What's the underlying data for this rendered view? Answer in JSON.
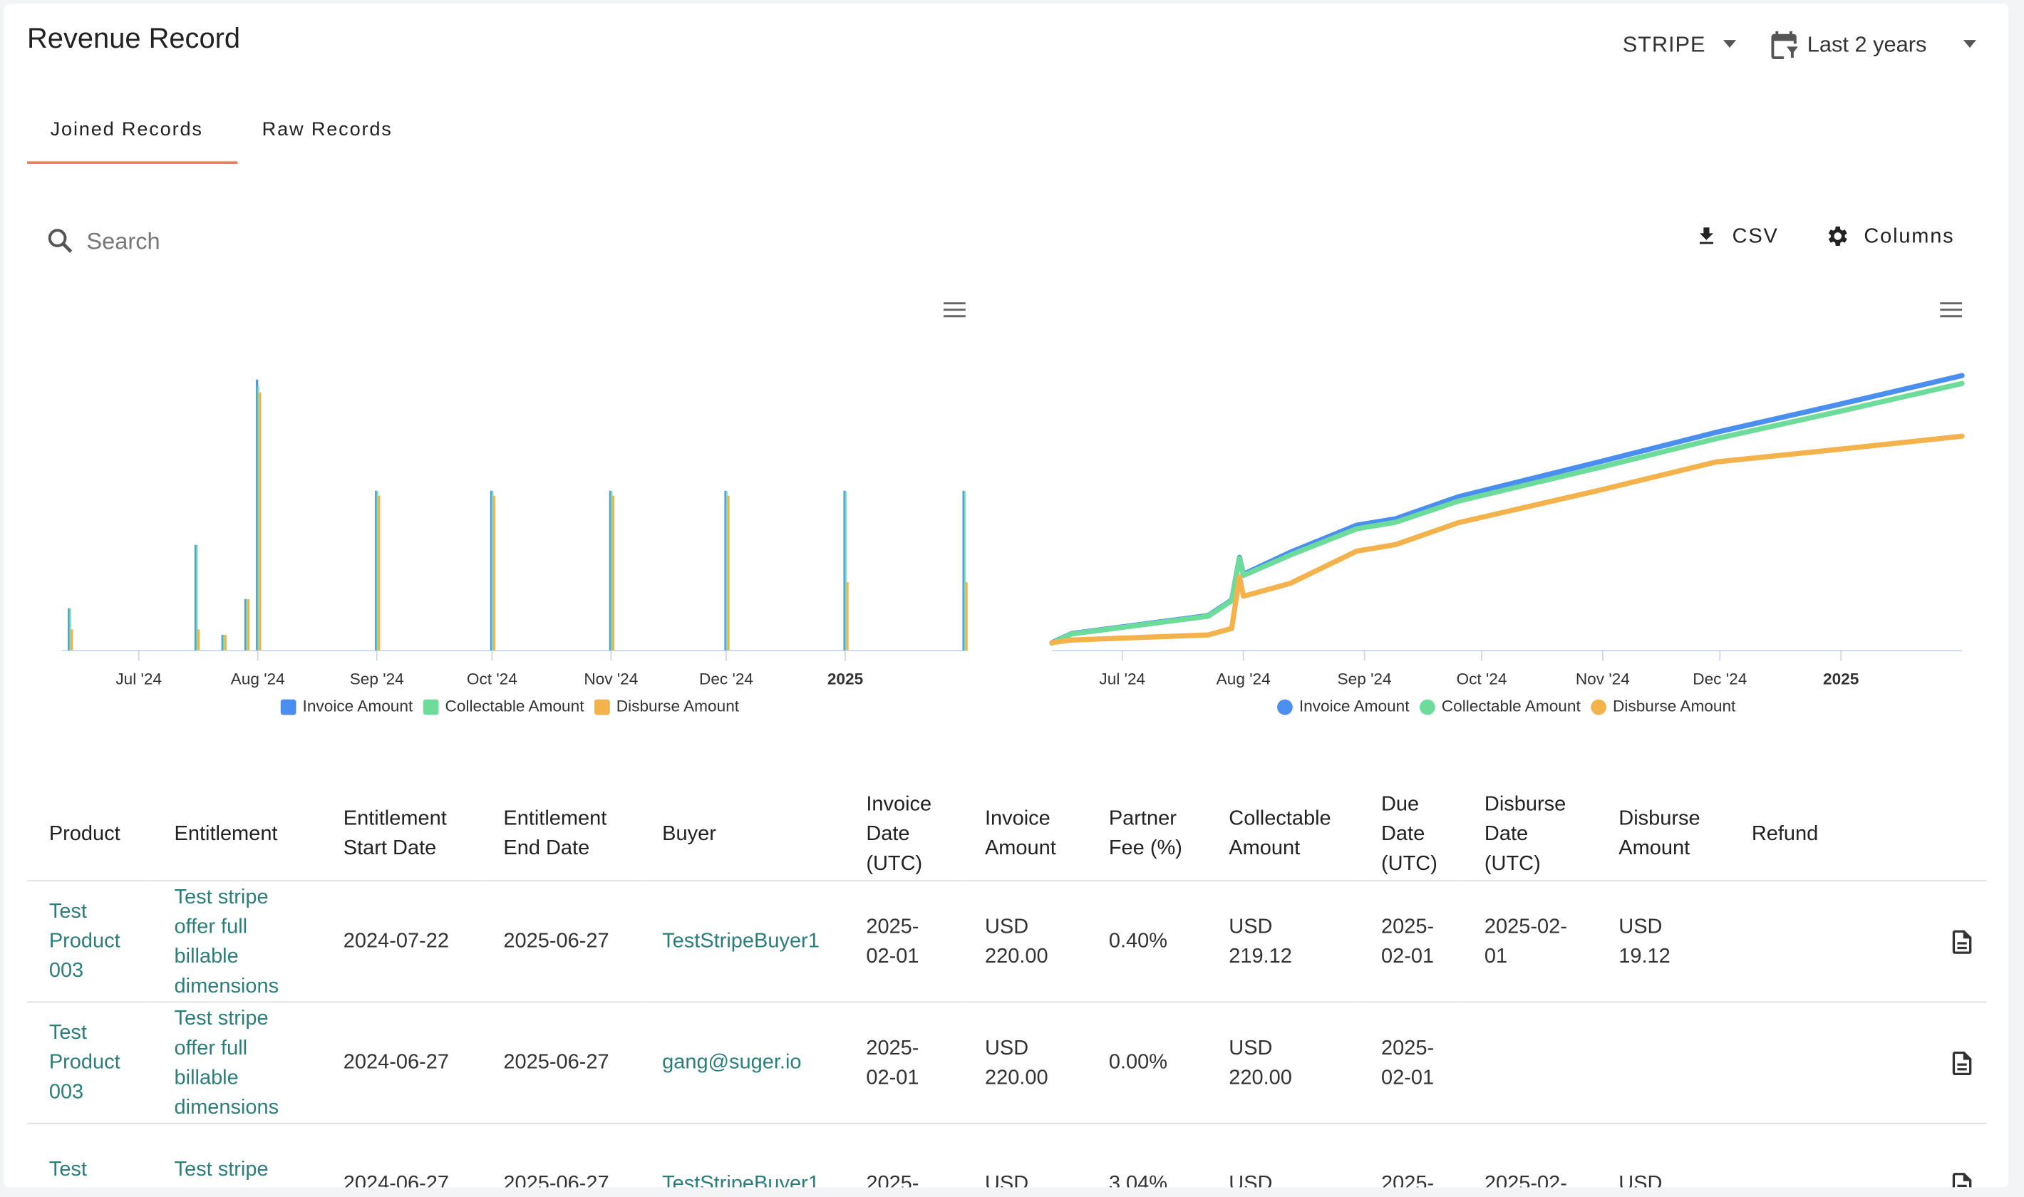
{
  "header": {
    "title": "Revenue Record",
    "source": "STRIPE",
    "date_range": "Last 2 years"
  },
  "tabs": [
    "Joined Records",
    "Raw Records"
  ],
  "toolbar": {
    "search_placeholder": "Search",
    "csv": "CSV",
    "columns": "Columns"
  },
  "chart_data": [
    {
      "type": "bar",
      "x": [
        "2024-06-13",
        "2024-07-16",
        "2024-07-23",
        "2024-07-29",
        "2024-08-01",
        "2024-09-01",
        "2024-10-01",
        "2024-11-01",
        "2024-12-01",
        "2025-01-01",
        "2025-02-01"
      ],
      "series": [
        {
          "name": "Invoice Amount",
          "color": "#4a8ef0",
          "values": [
            60,
            150,
            22,
            73,
            385,
            227,
            227,
            227,
            227,
            227,
            227
          ]
        },
        {
          "name": "Collectable Amount",
          "color": "#6ddc9a",
          "values": [
            60,
            150,
            22,
            73,
            376,
            226,
            226,
            226,
            226,
            226,
            226
          ]
        },
        {
          "name": "Disburse Amount",
          "color": "#f4b24c",
          "values": [
            30,
            30,
            22,
            73,
            367,
            220,
            220,
            220,
            220,
            97,
            97
          ]
        }
      ],
      "xlim": [
        "2024-06-11",
        "2025-02-02"
      ],
      "ylim": [
        0,
        400
      ],
      "xticks": [
        {
          "value": "2024-07-01",
          "label": "Jul '24"
        },
        {
          "value": "2024-08-01",
          "label": "Aug '24"
        },
        {
          "value": "2024-09-01",
          "label": "Sep '24"
        },
        {
          "value": "2024-10-01",
          "label": "Oct '24"
        },
        {
          "value": "2024-11-01",
          "label": "Nov '24"
        },
        {
          "value": "2024-12-01",
          "label": "Dec '24"
        },
        {
          "value": "2025-01-01",
          "label": "2025"
        }
      ],
      "legend": "bottom"
    },
    {
      "type": "line",
      "x": [
        "2024-06-13",
        "2024-06-18",
        "2024-07-23",
        "2024-07-29",
        "2024-07-31",
        "2024-08-01",
        "2024-08-13",
        "2024-08-30",
        "2024-09-09",
        "2024-09-25",
        "2024-10-31",
        "2024-11-30",
        "2025-01-01",
        "2025-02-01"
      ],
      "series": [
        {
          "name": "Invoice Amount",
          "color": "#4a8ef0",
          "values": [
            59,
            128,
            265,
            383,
            707,
            579,
            746,
            952,
            1001,
            1168,
            1433,
            1658,
            1874,
            2090
          ]
        },
        {
          "name": "Collectable Amount",
          "color": "#6ddc9a",
          "values": [
            55,
            125,
            260,
            378,
            700,
            570,
            725,
            925,
            975,
            1135,
            1390,
            1610,
            1820,
            2030
          ]
        },
        {
          "name": "Disburse Amount",
          "color": "#f4b24c",
          "values": [
            59,
            79,
            118,
            167,
            559,
            412,
            510,
            755,
            805,
            971,
            1217,
            1433,
            1531,
            1629
          ]
        }
      ],
      "xlim": [
        "2024-06-13",
        "2025-02-01"
      ],
      "ylim": [
        0,
        2100
      ],
      "xticks": [
        {
          "value": "2024-07-01",
          "label": "Jul '24"
        },
        {
          "value": "2024-08-01",
          "label": "Aug '24"
        },
        {
          "value": "2024-09-01",
          "label": "Sep '24"
        },
        {
          "value": "2024-10-01",
          "label": "Oct '24"
        },
        {
          "value": "2024-11-01",
          "label": "Nov '24"
        },
        {
          "value": "2024-12-01",
          "label": "Dec '24"
        },
        {
          "value": "2025-01-01",
          "label": "2025"
        }
      ],
      "legend": "bottom"
    }
  ],
  "table": {
    "headers": [
      "Product",
      "Entitlement",
      "Entitlement Start Date",
      "Entitlement End Date",
      "Buyer",
      "Invoice Date (UTC)",
      "Invoice Amount",
      "Partner Fee (%)",
      "Collectable Amount",
      "Due Date (UTC)",
      "Disburse Date (UTC)",
      "Disburse Amount",
      "Refund"
    ],
    "link_columns": [
      0,
      1,
      4
    ],
    "rows": [
      [
        "Test Product 003",
        "Test stripe offer full billable dimensions",
        "2024-07-22",
        "2025-06-27",
        "TestStripeBuyer1",
        "2025-02-01",
        "USD 220.00",
        "0.40%",
        "USD 219.12",
        "2025-02-01",
        "2025-02-01",
        "USD 19.12",
        null
      ],
      [
        "Test Product 003",
        "Test stripe offer full billable dimensions",
        "2024-06-27",
        "2025-06-27",
        "gang@suger.io",
        "2025-02-01",
        "USD 220.00",
        "0.00%",
        "USD 220.00",
        "2025-02-01",
        null,
        null,
        null
      ],
      [
        "Test Product",
        "Test stripe offer full",
        "2024-06-27",
        "2025-06-27",
        "TestStripeBuyer1",
        "2025-",
        "USD",
        "3.04%",
        "USD",
        "2025-",
        "2025-02-",
        "USD",
        null
      ]
    ]
  }
}
